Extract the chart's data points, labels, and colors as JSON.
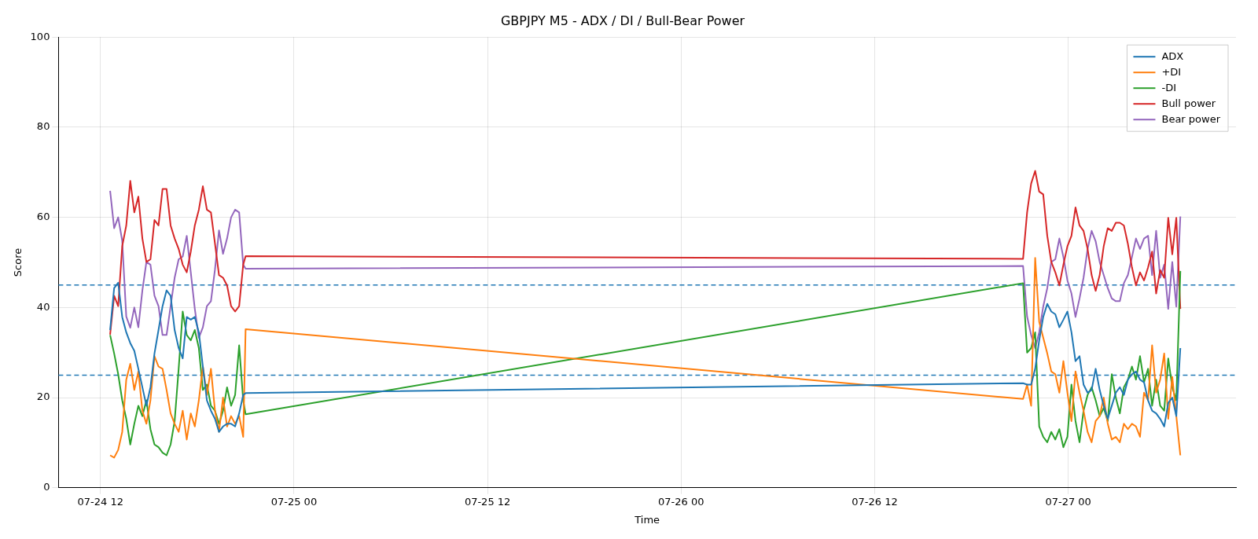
{
  "chart_data": {
    "type": "line",
    "title": "GBPJPY M5 - ADX / DI / Bull-Bear Power",
    "xlabel": "Time",
    "ylabel": "Score",
    "x": [
      "--07-24T12:36",
      "--07-24T12:51",
      "--07-24T13:06",
      "--07-24T13:21",
      "--07-24T13:36",
      "--07-24T13:51",
      "--07-24T14:06",
      "--07-24T14:21",
      "--07-24T14:36",
      "--07-24T14:51",
      "--07-24T15:06",
      "--07-24T15:21",
      "--07-24T15:36",
      "--07-24T15:51",
      "--07-24T16:06",
      "--07-24T16:21",
      "--07-24T16:36",
      "--07-24T16:51",
      "--07-24T17:06",
      "--07-24T17:21",
      "--07-24T17:36",
      "--07-24T17:51",
      "--07-24T18:06",
      "--07-24T18:21",
      "--07-24T18:36",
      "--07-24T18:51",
      "--07-24T19:06",
      "--07-24T19:21",
      "--07-24T19:36",
      "--07-24T19:51",
      "--07-24T20:06",
      "--07-24T20:21",
      "--07-24T20:36",
      "--07-24T20:51",
      "--07-24T21:00",
      "--07-26T21:12",
      "--07-26T21:27",
      "--07-26T21:42",
      "--07-26T21:57",
      "--07-26T22:12",
      "--07-26T22:27",
      "--07-26T22:42",
      "--07-26T22:57",
      "--07-26T23:12",
      "--07-26T23:27",
      "--07-26T23:42",
      "--07-26T23:57",
      "--07-27T00:12",
      "--07-27T00:27",
      "--07-27T00:42",
      "--07-27T00:57",
      "--07-27T01:12",
      "--07-27T01:27",
      "--07-27T01:42",
      "--07-27T01:57",
      "--07-27T02:12",
      "--07-27T02:27",
      "--07-27T02:42",
      "--07-27T02:57",
      "--07-27T03:12",
      "--07-27T03:27",
      "--07-27T03:42",
      "--07-27T03:57",
      "--07-27T04:12",
      "--07-27T04:27",
      "--07-27T04:42",
      "--07-27T04:57",
      "--07-27T05:12",
      "--07-27T05:27",
      "--07-27T05:42",
      "--07-27T05:57",
      "--07-27T06:12",
      "--07-27T06:27",
      "--07-27T06:42",
      "--07-27T06:57"
    ],
    "series": [
      {
        "name": "ADX",
        "color": "#1f77b4",
        "values": [
          35.0,
          44.3,
          45.5,
          37.9,
          34.5,
          32.1,
          30.4,
          26.4,
          22.3,
          18.2,
          22.3,
          29.8,
          35.0,
          40.3,
          43.8,
          42.6,
          35.0,
          31.0,
          28.7,
          37.9,
          37.3,
          37.9,
          34.5,
          26.9,
          19.4,
          17.1,
          15.3,
          12.4,
          13.6,
          14.2,
          14.2,
          13.6,
          16.5,
          20.6,
          21.0,
          23.2,
          22.9,
          22.9,
          26.4,
          32.7,
          37.9,
          40.8,
          39.1,
          38.5,
          35.6,
          37.3,
          39.1,
          34.5,
          28.1,
          29.2,
          22.9,
          21.1,
          21.7,
          26.4,
          21.7,
          18.2,
          15.3,
          18.2,
          21.1,
          22.3,
          20.6,
          24.0,
          25.2,
          25.8,
          24.0,
          23.4,
          19.4,
          17.1,
          16.5,
          15.3,
          13.6,
          18.8,
          20.0,
          15.9,
          31.0
        ]
      },
      {
        "name": "+DI",
        "color": "#ff7f0e",
        "values": [
          7.2,
          6.7,
          8.4,
          12.4,
          24.0,
          27.5,
          21.7,
          25.8,
          17.1,
          14.2,
          19.4,
          29.2,
          26.9,
          26.4,
          21.7,
          16.5,
          14.2,
          12.4,
          17.1,
          10.7,
          16.5,
          13.6,
          19.4,
          26.9,
          20.6,
          26.4,
          17.1,
          12.4,
          20.0,
          13.6,
          15.9,
          14.2,
          15.9,
          11.3,
          35.2,
          19.7,
          22.9,
          18.2,
          51,
          36.8,
          33.3,
          29.8,
          25.8,
          25.2,
          21.1,
          28.1,
          21.1,
          14.8,
          25.8,
          21.1,
          17.1,
          12.4,
          10.1,
          14.8,
          15.9,
          20.0,
          14.2,
          10.7,
          11.3,
          10.1,
          14.2,
          13.0,
          14.2,
          13.6,
          11.3,
          21.1,
          19.4,
          31.6,
          21.1,
          24.0,
          29.8,
          15.3,
          24.6,
          15.9,
          7.2
        ]
      },
      {
        "name": "-DI",
        "color": "#2ca02c",
        "values": [
          33.9,
          29.8,
          25.2,
          19.4,
          15.3,
          9.6,
          14.2,
          18.2,
          15.9,
          19.4,
          13.0,
          9.6,
          9.0,
          7.8,
          7.2,
          9.6,
          14.8,
          26.4,
          39.1,
          33.9,
          32.7,
          35.0,
          31.0,
          21.7,
          22.9,
          18.2,
          17.1,
          14.2,
          17.1,
          22.3,
          18.2,
          20.6,
          31.6,
          19.4,
          16.3,
          45.4,
          30,
          31.0,
          34.5,
          13.6,
          11.3,
          10.1,
          12.4,
          10.7,
          13.0,
          9.0,
          11.3,
          22.9,
          14.8,
          10.1,
          17.1,
          20.6,
          22.3,
          19.4,
          15.9,
          17.7,
          14.8,
          25.2,
          20.0,
          16.5,
          22.3,
          24.0,
          26.9,
          24.0,
          29.2,
          23.4,
          26.4,
          18.2,
          24.0,
          18.2,
          17.1,
          28.7,
          22.3,
          19.4,
          48.1
        ]
      },
      {
        "name": "Bull power",
        "color": "#d62728",
        "values": [
          34,
          42.6,
          40.3,
          53.6,
          58.2,
          68.1,
          61.1,
          64.6,
          55.3,
          50.1,
          50.7,
          59.4,
          58.2,
          66.3,
          66.3,
          58.2,
          55.3,
          53.0,
          49.5,
          47.8,
          52.4,
          58.2,
          61.7,
          66.9,
          61.7,
          61.1,
          54.2,
          47.2,
          46.6,
          44.9,
          40.3,
          39.1,
          40.3,
          49.5,
          51.4,
          50.8,
          61.1,
          67.5,
          70.3,
          65.7,
          65.1,
          55.9,
          50.1,
          47.8,
          44.9,
          49.5,
          53.6,
          55.9,
          62.2,
          58.2,
          57.0,
          53.0,
          47.2,
          43.7,
          47.2,
          53.6,
          57.6,
          57.0,
          58.8,
          58.8,
          58.2,
          54.1,
          48.9,
          44.9,
          47.8,
          46.0,
          48.9,
          52.4,
          43.1,
          48.3,
          46.6,
          59.9,
          51.8,
          59.9,
          39.7
        ]
      },
      {
        "name": "Bear power",
        "color": "#9467bd",
        "values": [
          65.9,
          57.6,
          60.0,
          54.8,
          38,
          35.5,
          40,
          35.6,
          43.8,
          50.1,
          49.5,
          42.6,
          40.3,
          33.9,
          33.9,
          40.3,
          46.6,
          50.7,
          51.3,
          55.9,
          47.8,
          39.7,
          33.3,
          35.6,
          40.3,
          41.4,
          48.4,
          57.1,
          51.9,
          55.3,
          60.0,
          61.7,
          61.1,
          49.5,
          48.6,
          49.2,
          38,
          33.9,
          31.0,
          34.5,
          40.2,
          44.3,
          50.1,
          50.7,
          55.3,
          51.2,
          46.0,
          43.1,
          37.9,
          42.0,
          46.6,
          53.0,
          57.0,
          54.7,
          50.1,
          47.2,
          44.3,
          42.0,
          41.4,
          41.4,
          45.4,
          47.2,
          51.2,
          55.3,
          53.0,
          55.3,
          55.9,
          47.2,
          57.0,
          46.6,
          49.5,
          39.7,
          50.1,
          40.2,
          60.2
        ]
      }
    ],
    "xlim": [
      "--07-24T09:24",
      "--07-27T10:24"
    ],
    "ylim": [
      0,
      100
    ],
    "xticks": [
      {
        "value": "--07-24T12:00",
        "label": "07-24 12"
      },
      {
        "value": "--07-25T00:00",
        "label": "07-25 00"
      },
      {
        "value": "--07-25T12:00",
        "label": "07-25 12"
      },
      {
        "value": "--07-26T00:00",
        "label": "07-26 00"
      },
      {
        "value": "--07-26T12:00",
        "label": "07-26 12"
      },
      {
        "value": "--07-27T00:00",
        "label": "07-27 00"
      }
    ],
    "yticks": [
      0,
      20,
      40,
      60,
      80,
      100
    ],
    "ref_lines": [
      {
        "axis": "y",
        "value": 45,
        "color": "#1f77b4",
        "line_style": "dashed"
      },
      {
        "axis": "y",
        "value": 25,
        "color": "#1f77b4",
        "line_style": "dashed"
      }
    ],
    "grid": true,
    "legend": "top right"
  }
}
